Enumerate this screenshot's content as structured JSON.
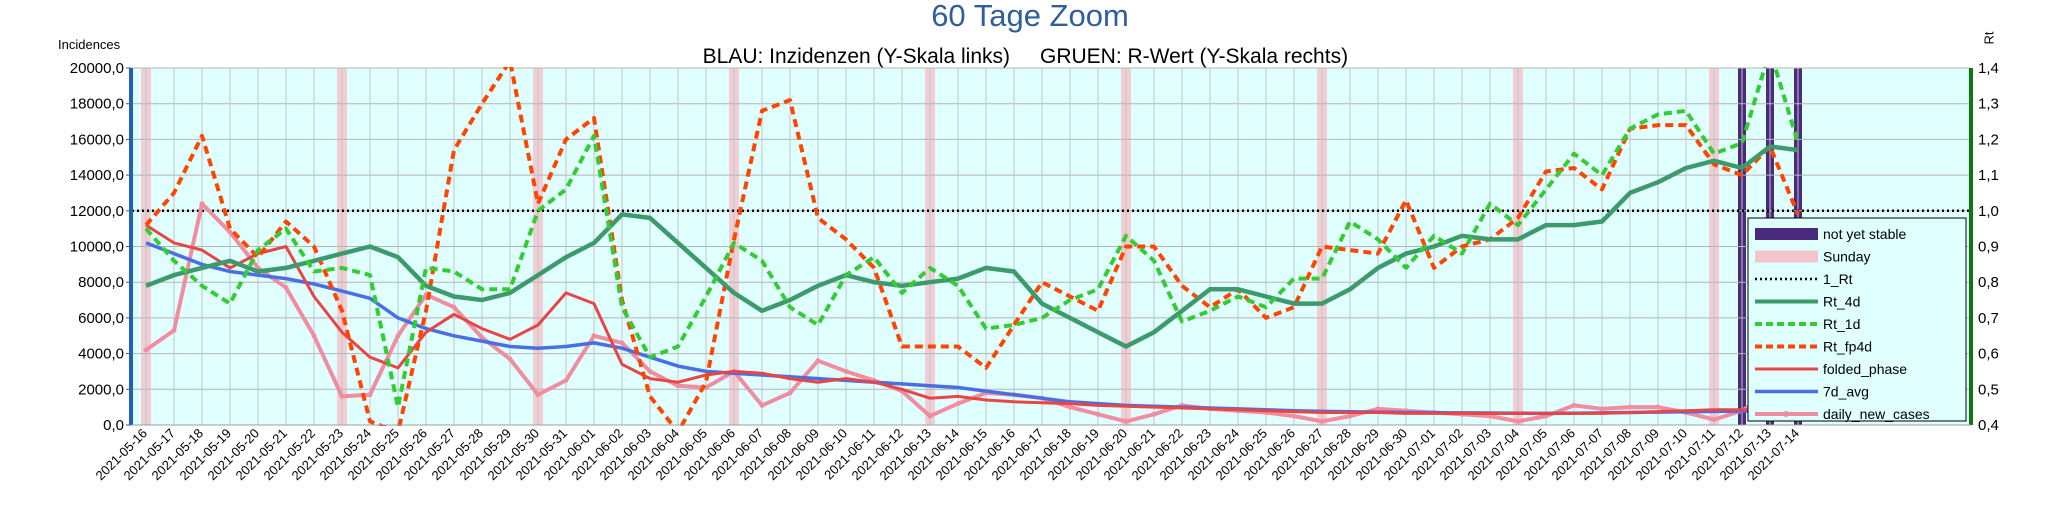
{
  "chart_data": {
    "type": "line",
    "title": "60 Tage Zoom",
    "subtitle_left": "BLAU: Inzidenzen (Y-Skala links)",
    "subtitle_right": "GRUEN: R-Wert (Y-Skala rechts)",
    "ylabel_left": "Incidences",
    "ylabel_right": "Rt",
    "ylim_left": [
      0,
      20000
    ],
    "ylim_right": [
      0.4,
      1.4
    ],
    "yticks_left": [
      "0,0",
      "2000,0",
      "4000,0",
      "6000,0",
      "8000,0",
      "10000,0",
      "12000,0",
      "14000,0",
      "16000,0",
      "18000,0",
      "20000,0"
    ],
    "yticks_right": [
      "0,4",
      "0,5",
      "0,6",
      "0,7",
      "0,8",
      "0,9",
      "1,0",
      "1,1",
      "1,2",
      "1,3",
      "1,4"
    ],
    "grid": true,
    "legend_position": "right",
    "categories": [
      "2021-05-16",
      "2021-05-17",
      "2021-05-18",
      "2021-05-19",
      "2021-05-20",
      "2021-05-21",
      "2021-05-22",
      "2021-05-23",
      "2021-05-24",
      "2021-05-25",
      "2021-05-26",
      "2021-05-27",
      "2021-05-28",
      "2021-05-29",
      "2021-05-30",
      "2021-05-31",
      "2021-06-01",
      "2021-06-02",
      "2021-06-03",
      "2021-06-04",
      "2021-06-05",
      "2021-06-06",
      "2021-06-07",
      "2021-06-08",
      "2021-06-09",
      "2021-06-10",
      "2021-06-11",
      "2021-06-12",
      "2021-06-13",
      "2021-06-14",
      "2021-06-15",
      "2021-06-16",
      "2021-06-17",
      "2021-06-18",
      "2021-06-19",
      "2021-06-20",
      "2021-06-21",
      "2021-06-22",
      "2021-06-23",
      "2021-06-24",
      "2021-06-25",
      "2021-06-26",
      "2021-06-27",
      "2021-06-28",
      "2021-06-29",
      "2021-06-30",
      "2021-07-01",
      "2021-07-02",
      "2021-07-03",
      "2021-07-04",
      "2021-07-05",
      "2021-07-06",
      "2021-07-07",
      "2021-07-08",
      "2021-07-09",
      "2021-07-10",
      "2021-07-11",
      "2021-07-12",
      "2021-07-13",
      "2021-07-14"
    ],
    "sundays": [
      "2021-05-16",
      "2021-05-23",
      "2021-05-30",
      "2021-06-06",
      "2021-06-13",
      "2021-06-20",
      "2021-06-27",
      "2021-07-04",
      "2021-07-11"
    ],
    "not_yet_stable": [
      "2021-07-12",
      "2021-07-13",
      "2021-07-14"
    ],
    "series": [
      {
        "name": "1_Rt",
        "axis": "right",
        "color": "#000000",
        "style": "dotted",
        "values": [
          1,
          1,
          1,
          1,
          1,
          1,
          1,
          1,
          1,
          1,
          1,
          1,
          1,
          1,
          1,
          1,
          1,
          1,
          1,
          1,
          1,
          1,
          1,
          1,
          1,
          1,
          1,
          1,
          1,
          1,
          1,
          1,
          1,
          1,
          1,
          1,
          1,
          1,
          1,
          1,
          1,
          1,
          1,
          1,
          1,
          1,
          1,
          1,
          1,
          1,
          1,
          1,
          1,
          1,
          1,
          1,
          1,
          1,
          1,
          1
        ]
      },
      {
        "name": "Rt_4d",
        "axis": "right",
        "color": "#3d9a6c",
        "style": "solid",
        "values": [
          0.79,
          0.82,
          0.84,
          0.86,
          0.83,
          0.84,
          0.86,
          0.88,
          0.9,
          0.87,
          0.79,
          0.76,
          0.75,
          0.77,
          0.82,
          0.87,
          0.91,
          0.99,
          0.98,
          0.91,
          0.84,
          0.77,
          0.72,
          0.75,
          0.79,
          0.82,
          0.8,
          0.79,
          0.8,
          0.81,
          0.84,
          0.83,
          0.74,
          0.7,
          0.66,
          0.62,
          0.66,
          0.72,
          0.78,
          0.78,
          0.76,
          0.74,
          0.74,
          0.78,
          0.84,
          0.88,
          0.9,
          0.93,
          0.92,
          0.92,
          0.96,
          0.96,
          0.97,
          1.05,
          1.08,
          1.12,
          1.14,
          1.12,
          1.18,
          1.17
        ]
      },
      {
        "name": "Rt_1d",
        "axis": "right",
        "color": "#33cc33",
        "style": "dashed",
        "values": [
          0.95,
          0.86,
          0.79,
          0.74,
          0.89,
          0.95,
          0.83,
          0.84,
          0.82,
          0.45,
          0.84,
          0.83,
          0.78,
          0.78,
          1.0,
          1.06,
          1.21,
          0.73,
          0.59,
          0.62,
          0.76,
          0.91,
          0.86,
          0.73,
          0.68,
          0.82,
          0.87,
          0.77,
          0.84,
          0.79,
          0.67,
          0.68,
          0.7,
          0.75,
          0.78,
          0.93,
          0.86,
          0.69,
          0.72,
          0.76,
          0.73,
          0.81,
          0.81,
          0.97,
          0.92,
          0.84,
          0.93,
          0.88,
          1.02,
          0.96,
          1.06,
          1.16,
          1.1,
          1.23,
          1.27,
          1.28,
          1.16,
          1.19,
          1.45,
          1.19
        ]
      },
      {
        "name": "Rt_fp4d",
        "axis": "right",
        "color": "#ff4500",
        "style": "dashed",
        "values": [
          0.96,
          1.05,
          1.21,
          0.95,
          0.87,
          0.97,
          0.9,
          0.72,
          0.41,
          0.38,
          0.72,
          1.17,
          1.3,
          1.42,
          1.02,
          1.2,
          1.26,
          0.75,
          0.48,
          0.38,
          0.52,
          0.92,
          1.28,
          1.31,
          0.98,
          0.92,
          0.84,
          0.62,
          0.62,
          0.62,
          0.56,
          0.68,
          0.8,
          0.76,
          0.72,
          0.9,
          0.9,
          0.79,
          0.73,
          0.78,
          0.7,
          0.73,
          0.9,
          0.89,
          0.88,
          1.03,
          0.84,
          0.9,
          0.92,
          0.98,
          1.11,
          1.12,
          1.06,
          1.23,
          1.24,
          1.24,
          1.13,
          1.1,
          1.18,
          0.99
        ]
      },
      {
        "name": "folded_phase",
        "axis": "left",
        "color": "#e84646",
        "style": "solid",
        "values": [
          11200,
          10200,
          9800,
          8800,
          9600,
          10000,
          7200,
          5200,
          3800,
          3200,
          5200,
          6200,
          5400,
          4800,
          5600,
          7400,
          6800,
          3400,
          2600,
          2400,
          2800,
          3000,
          2900,
          2600,
          2400,
          2600,
          2400,
          2000,
          1500,
          1600,
          1400,
          1300,
          1250,
          1200,
          1100,
          1050,
          1000,
          950,
          900,
          850,
          800,
          750,
          700,
          700,
          700,
          650,
          650,
          650,
          650,
          650,
          650,
          650,
          650,
          700,
          750,
          800,
          850,
          850,
          850,
          900
        ]
      },
      {
        "name": "7d_avg",
        "axis": "left",
        "color": "#4a6fe3",
        "style": "solid",
        "values": [
          10200,
          9600,
          9000,
          8600,
          8400,
          8200,
          7900,
          7500,
          7100,
          6000,
          5400,
          5000,
          4700,
          4400,
          4300,
          4400,
          4600,
          4300,
          3800,
          3300,
          3000,
          2900,
          2800,
          2700,
          2600,
          2500,
          2400,
          2300,
          2200,
          2100,
          1900,
          1700,
          1500,
          1300,
          1200,
          1100,
          1050,
          1000,
          950,
          900,
          850,
          800,
          760,
          740,
          720,
          700,
          690,
          680,
          670,
          660,
          650,
          660,
          680,
          700,
          720,
          740,
          760,
          780,
          800,
          850
        ]
      },
      {
        "name": "daily_new_cases",
        "axis": "left",
        "color": "#f08da0",
        "style": "solid",
        "values": [
          4200,
          5300,
          12400,
          10800,
          8800,
          7700,
          5000,
          1600,
          1700,
          5000,
          7300,
          6600,
          4900,
          3700,
          1700,
          2500,
          5000,
          4600,
          3000,
          2200,
          2100,
          3000,
          1100,
          1800,
          3600,
          3000,
          2500,
          1900,
          500,
          1200,
          1800,
          1700,
          1500,
          1000,
          600,
          200,
          600,
          1100,
          900,
          800,
          700,
          500,
          200,
          500,
          900,
          800,
          700,
          600,
          500,
          200,
          500,
          1100,
          900,
          1000,
          1000,
          700,
          300,
          800,
          1800,
          1100
        ]
      }
    ]
  }
}
